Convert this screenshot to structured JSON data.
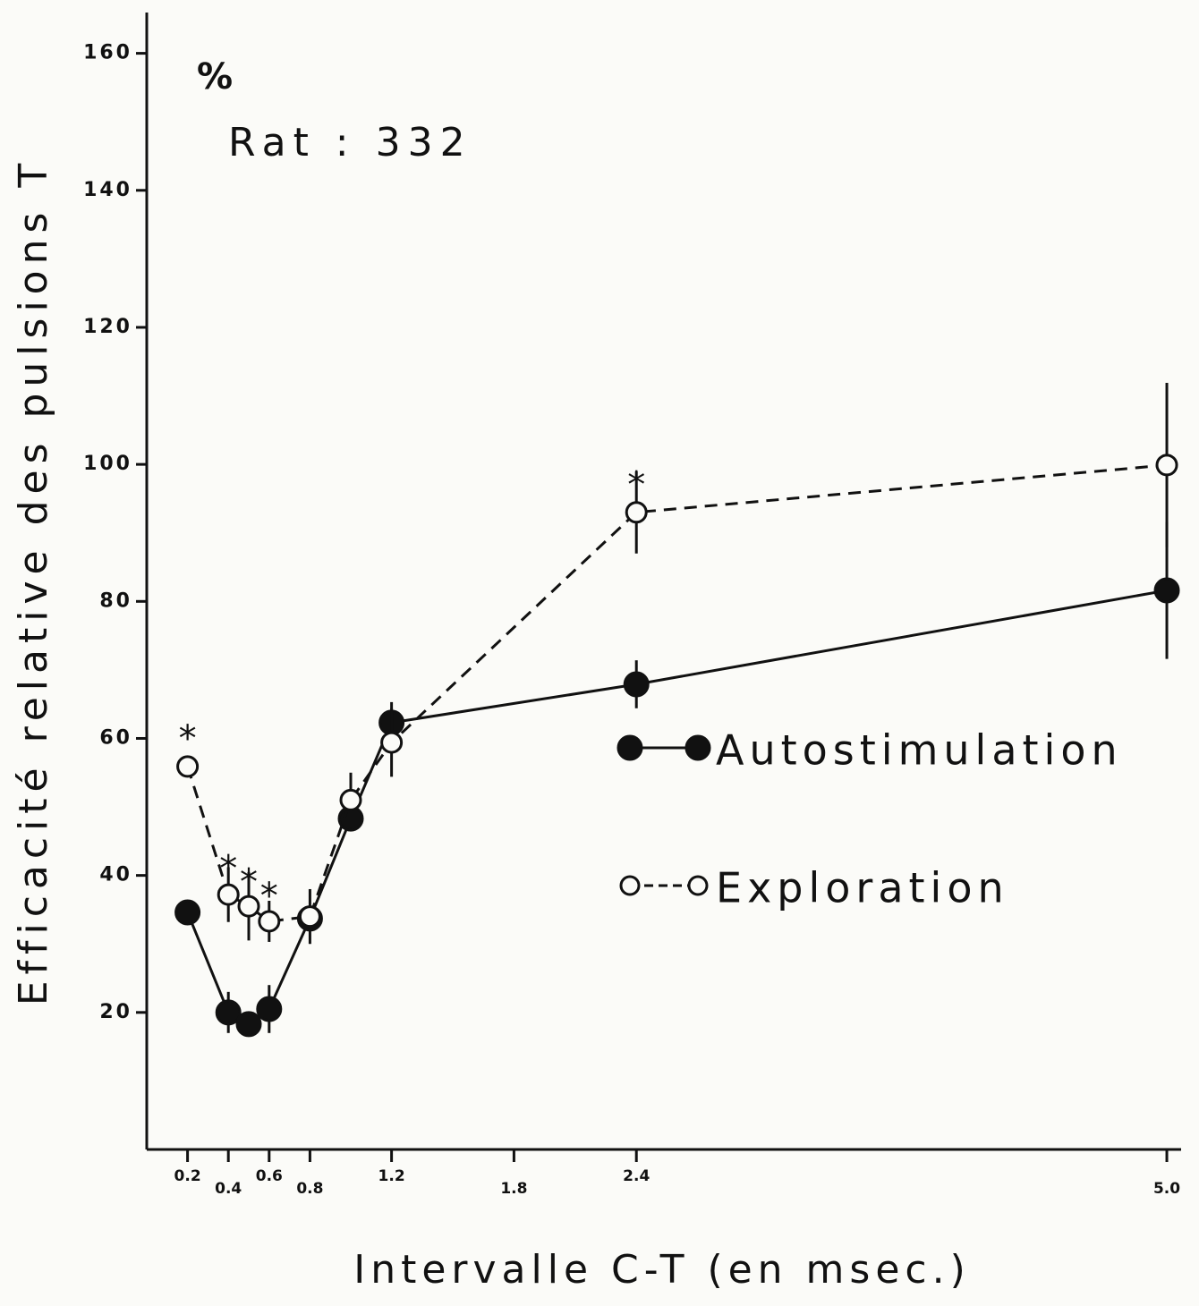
{
  "chart_data": {
    "type": "line",
    "ylabel": "Efficacité relative des pulsions T",
    "xlabel": "Intervalle  C-T  (en msec.)",
    "unit_label": "%",
    "subject_label": "Rat : 332",
    "xlim": [
      0,
      5.07
    ],
    "ylim": [
      0,
      167
    ],
    "xticks": [
      0.2,
      0.4,
      0.6,
      0.8,
      1.2,
      1.8,
      2.4,
      {
        "value": 5,
        "label": "5.0"
      }
    ],
    "yticks": [
      20,
      40,
      60,
      80,
      100,
      120,
      140,
      160
    ],
    "x": [
      0.2,
      0.4,
      0.5,
      0.6,
      0.8,
      1.0,
      1.2,
      2.4,
      5.0
    ],
    "series": [
      {
        "name": "Autostimulation",
        "color": "#111111",
        "style": "solid",
        "marker": "filled",
        "values": [
          34.6,
          20,
          18.3,
          20.5,
          33.7,
          48.3,
          62.3,
          67.9,
          81.6
        ],
        "errors": [
          0,
          3,
          0,
          3.5,
          0,
          0,
          3,
          3.5,
          10
        ]
      },
      {
        "name": "Exploration",
        "color": "#111111",
        "style": "dashed",
        "marker": "open",
        "values": [
          55.9,
          37.2,
          35.5,
          33.3,
          34,
          51,
          59.4,
          93,
          99.9
        ],
        "errors": [
          0,
          4,
          5,
          3,
          4,
          4,
          5,
          6,
          12
        ]
      }
    ],
    "annotations": [
      {
        "text": "*",
        "x": 0.2,
        "y": 61
      },
      {
        "text": "*",
        "x": 0.4,
        "y": 42
      },
      {
        "text": "*",
        "x": 0.5,
        "y": 40
      },
      {
        "text": "*",
        "x": 0.6,
        "y": 38
      },
      {
        "text": "*",
        "x": 2.4,
        "y": 98
      }
    ]
  }
}
